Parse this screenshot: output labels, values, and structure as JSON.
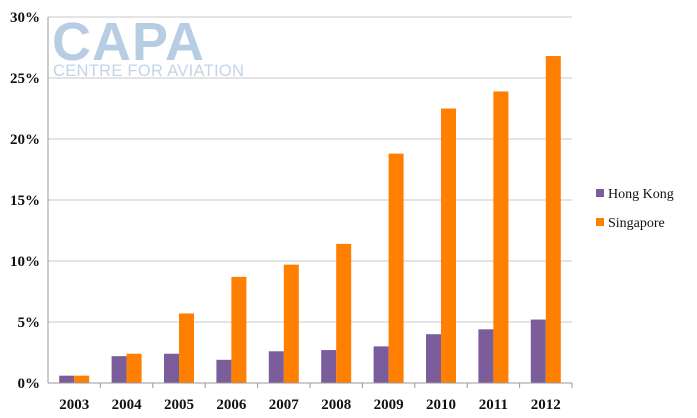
{
  "watermark": {
    "logo": "CAPA",
    "tagline": "CENTRE FOR AVIATION"
  },
  "chart_data": {
    "type": "bar",
    "title": "",
    "xlabel": "",
    "ylabel": "",
    "categories": [
      "2003",
      "2004",
      "2005",
      "2006",
      "2007",
      "2008",
      "2009",
      "2010",
      "2011",
      "2012"
    ],
    "series": [
      {
        "name": "Hong Kong",
        "color": "#7b5d9c",
        "values": [
          0.6,
          2.2,
          2.4,
          1.9,
          2.6,
          2.7,
          3.0,
          4.0,
          4.4,
          5.2
        ]
      },
      {
        "name": "Singapore",
        "color": "#ff7f00",
        "values": [
          0.6,
          2.4,
          5.7,
          8.7,
          9.7,
          11.4,
          18.8,
          22.5,
          23.9,
          26.8
        ]
      }
    ],
    "ylim": [
      0,
      30
    ],
    "yticks": [
      "0%",
      "5%",
      "10%",
      "15%",
      "20%",
      "25%",
      "30%"
    ],
    "grid": true,
    "legend_position": "right"
  }
}
